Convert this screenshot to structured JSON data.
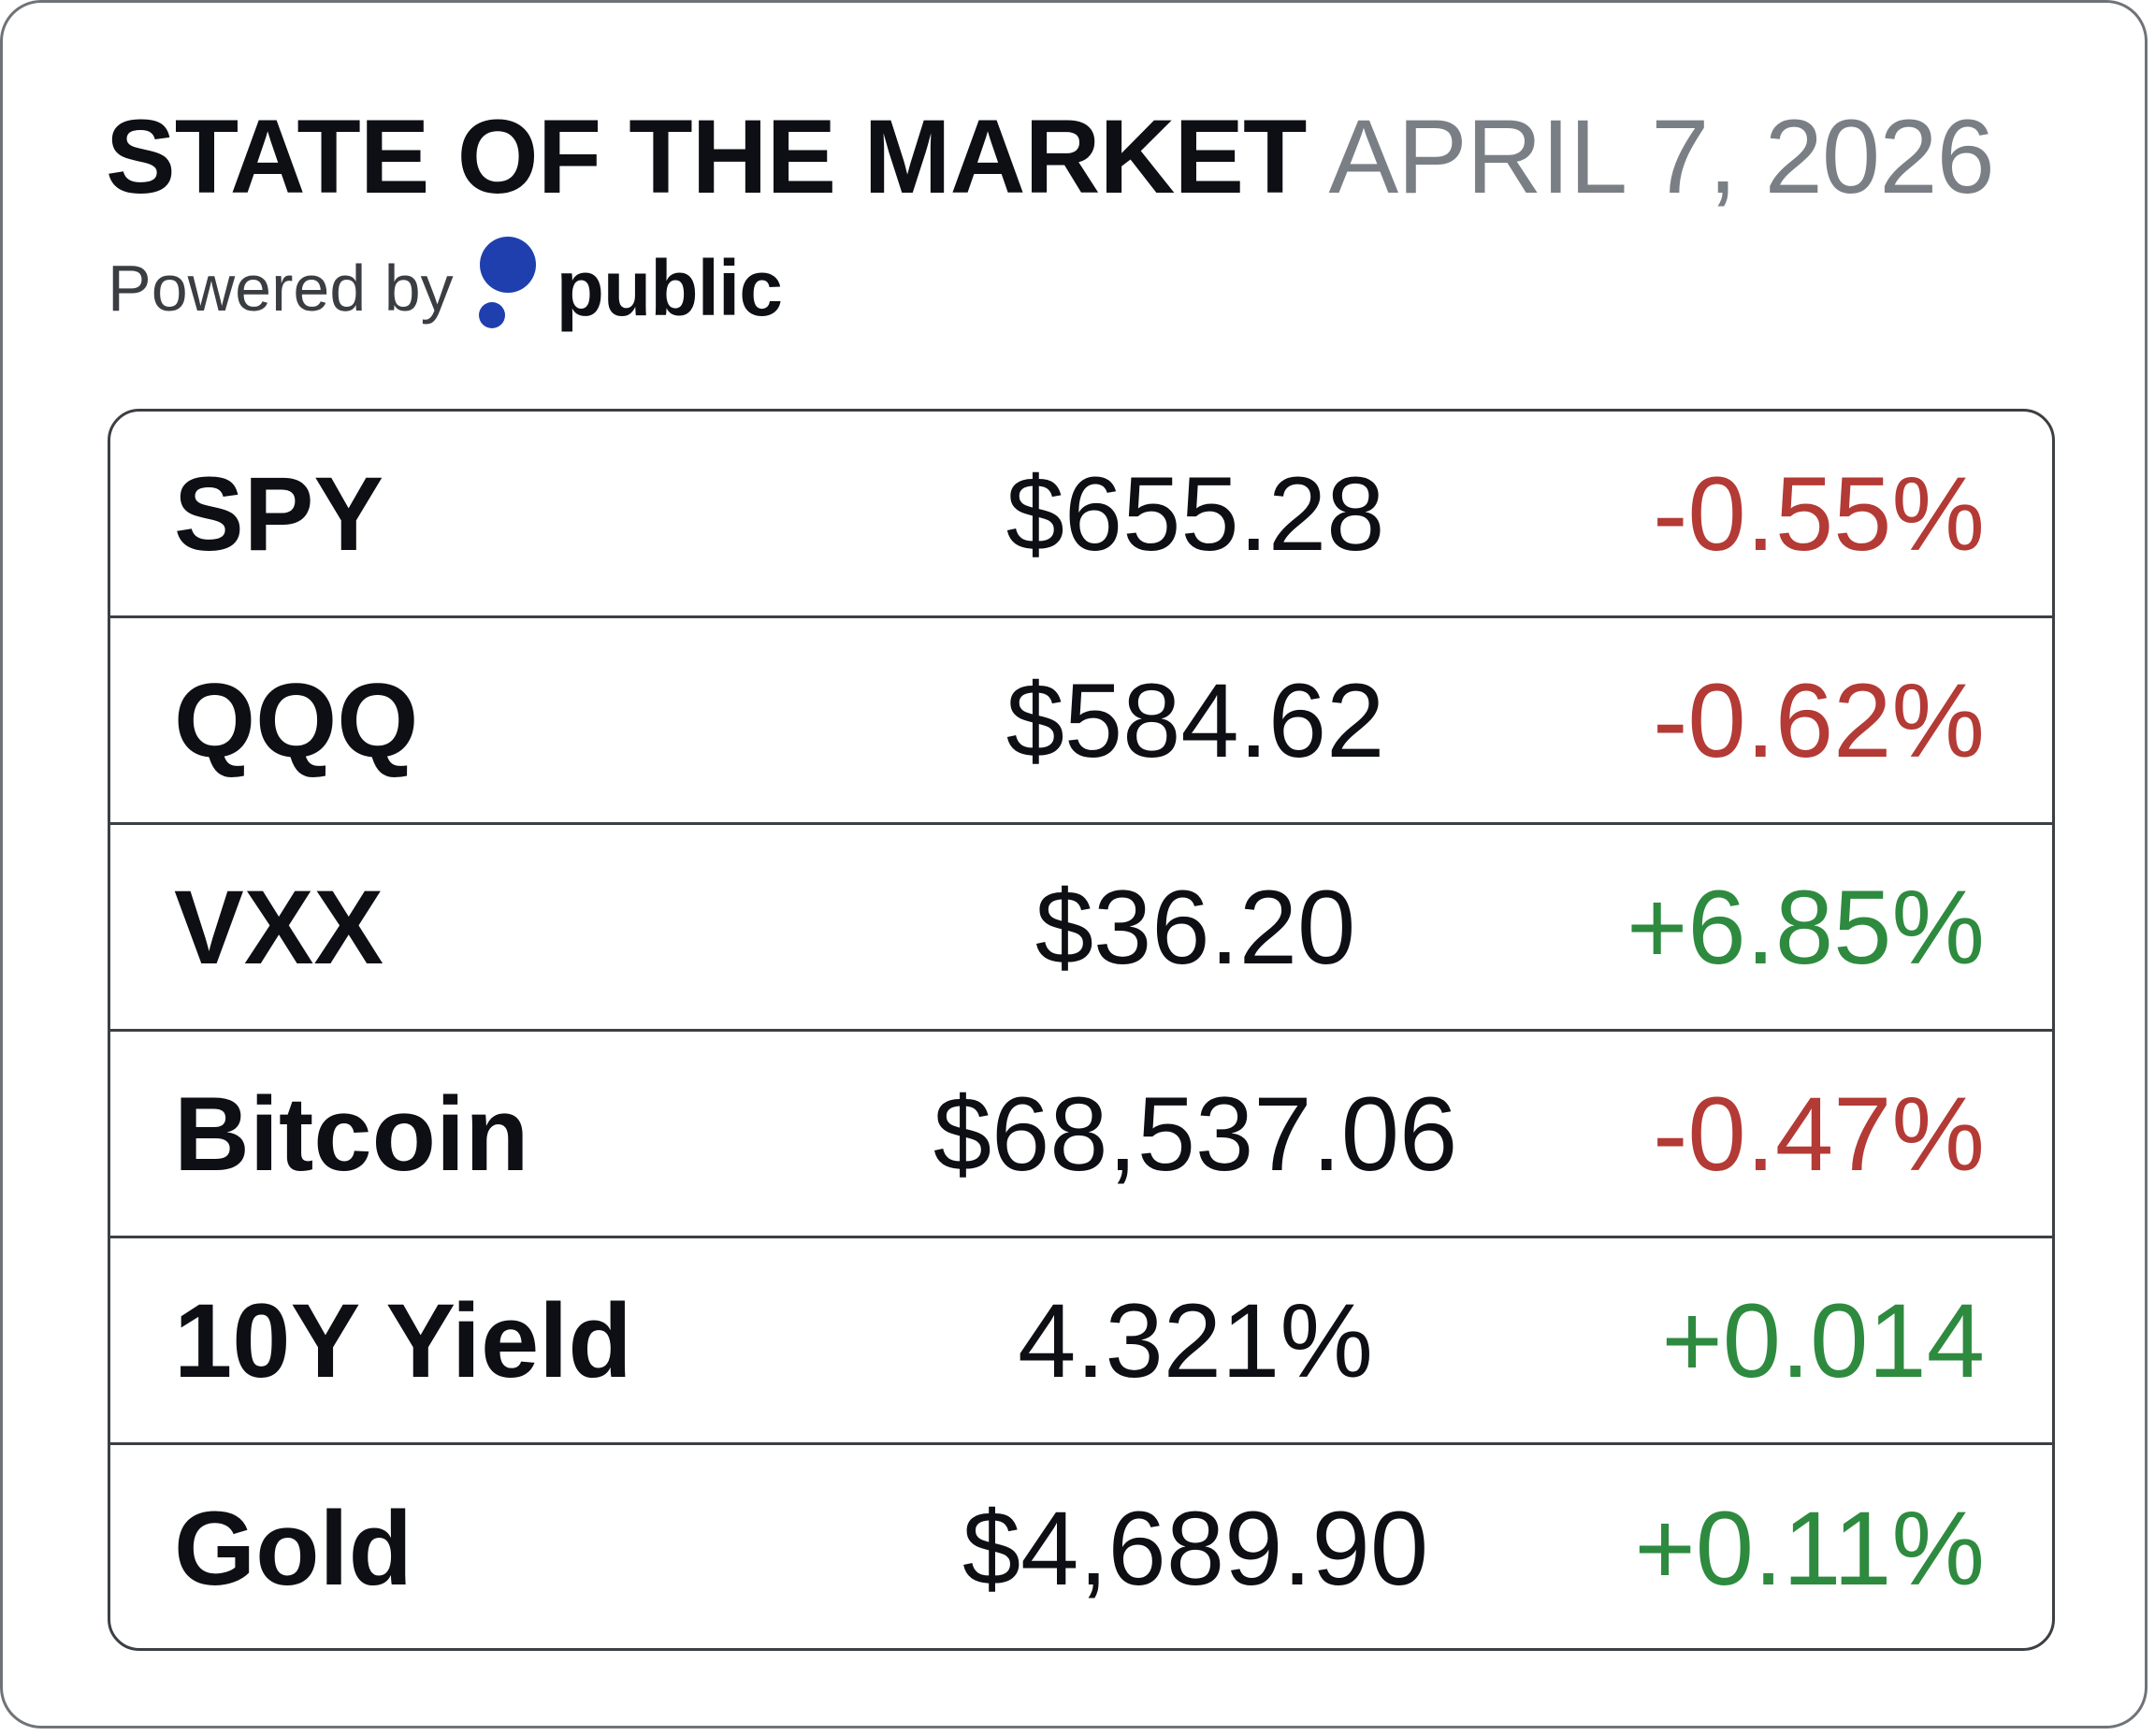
{
  "header": {
    "title": "STATE OF THE MARKET",
    "date": "APRIL 7, 2026",
    "powered_by": "Powered by",
    "brand": "public"
  },
  "colors": {
    "negative": "#b33a35",
    "positive": "#2e8a3f",
    "brand_dot": "#1f3fae",
    "date_gray": "#7a7f86"
  },
  "rows": [
    {
      "name": "SPY",
      "price": "$655.28",
      "change": "-0.55%",
      "direction": "down"
    },
    {
      "name": "QQQ",
      "price": "$584.62",
      "change": "-0.62%",
      "direction": "down"
    },
    {
      "name": "VXX",
      "price": "$36.20",
      "change": "+6.85%",
      "direction": "up"
    },
    {
      "name": "Bitcoin",
      "price": "$68,537.06",
      "change": "-0.47%",
      "direction": "down"
    },
    {
      "name": "10Y Yield",
      "price": "4.321%",
      "change": "+0.014",
      "direction": "up"
    },
    {
      "name": "Gold",
      "price": "$4,689.90",
      "change": "+0.11%",
      "direction": "up"
    }
  ]
}
